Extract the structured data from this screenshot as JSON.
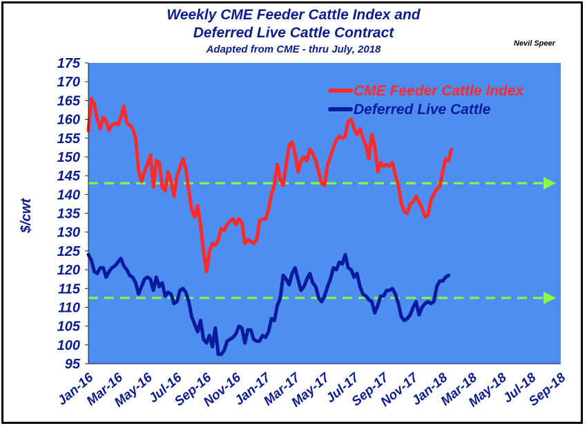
{
  "title_line1": "Weekly CME Feeder Cattle Index and",
  "title_line2": "Deferred Live Cattle Contract",
  "subtitle": "Adapted from CME - thru July, 2018",
  "credit": "Nevil Speer",
  "colors": {
    "plot_bg": "#4e8ef0",
    "feeder": "#ff2a2a",
    "live": "#0a1a9e",
    "reference": "#8aff3a",
    "axis_text": "#0b1c8c"
  },
  "chart_data": {
    "type": "line",
    "title": "Weekly CME Feeder Cattle Index and Deferred Live Cattle Contract",
    "subtitle": "Adapted from CME - thru July, 2018",
    "xlabel": "",
    "ylabel": "$/cwt",
    "ylim": [
      95,
      175
    ],
    "yticks": [
      95,
      100,
      105,
      110,
      115,
      120,
      125,
      130,
      135,
      140,
      145,
      150,
      155,
      160,
      165,
      170,
      175
    ],
    "x_tick_labels": [
      "Jan-16",
      "Mar-16",
      "May-16",
      "Jul-16",
      "Sep-16",
      "Nov-16",
      "Jan-17",
      "Mar-17",
      "May-17",
      "Jul-17",
      "Sep-17",
      "Nov-17",
      "Jan-18",
      "Mar-18",
      "May-18",
      "Jul-18",
      "Sep-18"
    ],
    "x_unit": "months since Jan-16",
    "grid": false,
    "legend_position": "top-right",
    "series": [
      {
        "name": "CME Feeder Cattle Index",
        "color": "#ff2a2a",
        "points": [
          [
            0,
            157
          ],
          [
            0.2,
            165.5
          ],
          [
            0.4,
            164
          ],
          [
            0.6,
            160
          ],
          [
            0.8,
            157.5
          ],
          [
            1.0,
            160.5
          ],
          [
            1.2,
            159.5
          ],
          [
            1.4,
            157
          ],
          [
            1.6,
            158.5
          ],
          [
            1.8,
            159
          ],
          [
            2.0,
            158.5
          ],
          [
            2.2,
            160.5
          ],
          [
            2.4,
            163.5
          ],
          [
            2.6,
            159
          ],
          [
            2.8,
            158.5
          ],
          [
            3.0,
            157.5
          ],
          [
            3.2,
            155
          ],
          [
            3.4,
            146.5
          ],
          [
            3.6,
            143.5
          ],
          [
            3.8,
            146
          ],
          [
            4.0,
            148
          ],
          [
            4.2,
            150.5
          ],
          [
            4.4,
            142
          ],
          [
            4.6,
            149
          ],
          [
            4.8,
            148.5
          ],
          [
            5.0,
            142
          ],
          [
            5.2,
            141
          ],
          [
            5.4,
            146
          ],
          [
            5.6,
            143.5
          ],
          [
            5.8,
            139.5
          ],
          [
            6.0,
            145
          ],
          [
            6.2,
            147
          ],
          [
            6.4,
            149.5
          ],
          [
            6.6,
            147
          ],
          [
            6.8,
            141
          ],
          [
            7.0,
            136
          ],
          [
            7.2,
            134
          ],
          [
            7.4,
            137
          ],
          [
            7.6,
            132
          ],
          [
            7.8,
            125
          ],
          [
            8.0,
            119.5
          ],
          [
            8.2,
            125
          ],
          [
            8.4,
            127
          ],
          [
            8.6,
            126.5
          ],
          [
            8.8,
            128
          ],
          [
            9.0,
            131
          ],
          [
            9.2,
            130.5
          ],
          [
            9.4,
            132
          ],
          [
            9.6,
            133
          ],
          [
            9.8,
            133.5
          ],
          [
            10.0,
            132
          ],
          [
            10.2,
            133.5
          ],
          [
            10.4,
            132.5
          ],
          [
            10.6,
            127
          ],
          [
            10.8,
            128
          ],
          [
            11.0,
            127.5
          ],
          [
            11.2,
            127
          ],
          [
            11.4,
            128
          ],
          [
            11.6,
            133
          ],
          [
            11.8,
            133.5
          ],
          [
            12.0,
            133.5
          ],
          [
            12.2,
            136
          ],
          [
            12.4,
            140
          ],
          [
            12.6,
            142.5
          ],
          [
            12.8,
            148
          ],
          [
            13.0,
            144
          ],
          [
            13.2,
            142.5
          ],
          [
            13.4,
            148
          ],
          [
            13.6,
            153
          ],
          [
            13.8,
            154
          ],
          [
            14.0,
            151
          ],
          [
            14.2,
            146
          ],
          [
            14.4,
            149
          ],
          [
            14.6,
            150
          ],
          [
            14.8,
            149
          ],
          [
            15.0,
            152
          ],
          [
            15.2,
            151
          ],
          [
            15.4,
            149
          ],
          [
            15.6,
            146
          ],
          [
            15.8,
            143
          ],
          [
            16.0,
            142.5
          ],
          [
            16.2,
            148
          ],
          [
            16.4,
            150
          ],
          [
            16.6,
            152.5
          ],
          [
            16.8,
            154.5
          ],
          [
            17.0,
            155.5
          ],
          [
            17.2,
            155
          ],
          [
            17.4,
            155.5
          ],
          [
            17.6,
            159.5
          ],
          [
            17.8,
            160
          ],
          [
            18.0,
            157.5
          ],
          [
            18.2,
            156
          ],
          [
            18.4,
            157.5
          ],
          [
            18.6,
            155
          ],
          [
            18.8,
            153
          ],
          [
            19.0,
            149.5
          ],
          [
            19.2,
            156
          ],
          [
            19.4,
            153
          ],
          [
            19.6,
            146
          ],
          [
            19.8,
            148.5
          ],
          [
            20.0,
            147.5
          ],
          [
            20.2,
            148
          ],
          [
            20.4,
            147.5
          ],
          [
            20.6,
            148.5
          ],
          [
            20.8,
            145
          ],
          [
            21.0,
            142.5
          ],
          [
            21.2,
            137.5
          ],
          [
            21.4,
            135.5
          ],
          [
            21.6,
            135
          ],
          [
            21.8,
            137.5
          ],
          [
            22.0,
            138
          ],
          [
            22.2,
            139.5
          ],
          [
            22.4,
            138
          ],
          [
            22.6,
            136.5
          ],
          [
            22.8,
            134
          ],
          [
            23.0,
            134.5
          ],
          [
            23.2,
            138.5
          ],
          [
            23.4,
            140
          ],
          [
            23.6,
            141.5
          ],
          [
            23.8,
            142
          ],
          [
            24.0,
            146
          ],
          [
            24.2,
            149.5
          ],
          [
            24.4,
            149
          ],
          [
            24.6,
            152
          ]
        ]
      },
      {
        "name": "Deferred Live Cattle",
        "color": "#0a1a9e",
        "points": [
          [
            0,
            124
          ],
          [
            0.2,
            122.5
          ],
          [
            0.4,
            119.5
          ],
          [
            0.6,
            119
          ],
          [
            0.8,
            120.5
          ],
          [
            1.0,
            120.5
          ],
          [
            1.2,
            118
          ],
          [
            1.4,
            119.5
          ],
          [
            1.6,
            120.5
          ],
          [
            1.8,
            121
          ],
          [
            2.0,
            122
          ],
          [
            2.2,
            123
          ],
          [
            2.4,
            121
          ],
          [
            2.6,
            120
          ],
          [
            2.8,
            118.5
          ],
          [
            3.0,
            118
          ],
          [
            3.2,
            116.5
          ],
          [
            3.4,
            113.5
          ],
          [
            3.6,
            115.5
          ],
          [
            3.8,
            117.5
          ],
          [
            4.0,
            118
          ],
          [
            4.2,
            117.5
          ],
          [
            4.4,
            114.5
          ],
          [
            4.6,
            118
          ],
          [
            4.8,
            115.5
          ],
          [
            5.0,
            116.5
          ],
          [
            5.2,
            113
          ],
          [
            5.4,
            114
          ],
          [
            5.6,
            113.5
          ],
          [
            5.8,
            111
          ],
          [
            6.0,
            111.5
          ],
          [
            6.2,
            114.5
          ],
          [
            6.4,
            115
          ],
          [
            6.6,
            114
          ],
          [
            6.8,
            111.5
          ],
          [
            7.0,
            107.5
          ],
          [
            7.2,
            105.5
          ],
          [
            7.4,
            103.5
          ],
          [
            7.6,
            106.5
          ],
          [
            7.8,
            101.5
          ],
          [
            8.0,
            100.5
          ],
          [
            8.2,
            102.5
          ],
          [
            8.4,
            99.5
          ],
          [
            8.6,
            104.5
          ],
          [
            8.8,
            97.5
          ],
          [
            9.0,
            97.5
          ],
          [
            9.2,
            98.5
          ],
          [
            9.4,
            101
          ],
          [
            9.6,
            101.5
          ],
          [
            9.8,
            102
          ],
          [
            10.0,
            103
          ],
          [
            10.2,
            105
          ],
          [
            10.4,
            104.5
          ],
          [
            10.6,
            100.5
          ],
          [
            10.8,
            104
          ],
          [
            11.0,
            104
          ],
          [
            11.2,
            101.5
          ],
          [
            11.4,
            101
          ],
          [
            11.6,
            101
          ],
          [
            11.8,
            102.5
          ],
          [
            12.0,
            102
          ],
          [
            12.2,
            103.5
          ],
          [
            12.4,
            107
          ],
          [
            12.6,
            106.5
          ],
          [
            12.8,
            110.5
          ],
          [
            13.0,
            112.5
          ],
          [
            13.2,
            118.5
          ],
          [
            13.4,
            117.5
          ],
          [
            13.6,
            116
          ],
          [
            13.8,
            119
          ],
          [
            14.0,
            120.5
          ],
          [
            14.2,
            117.5
          ],
          [
            14.4,
            114.5
          ],
          [
            14.6,
            115.5
          ],
          [
            14.8,
            117.5
          ],
          [
            15.0,
            119
          ],
          [
            15.2,
            116.5
          ],
          [
            15.4,
            115.5
          ],
          [
            15.6,
            112.5
          ],
          [
            15.8,
            111.5
          ],
          [
            16.0,
            113
          ],
          [
            16.2,
            115.5
          ],
          [
            16.4,
            117.5
          ],
          [
            16.6,
            120.5
          ],
          [
            16.8,
            120
          ],
          [
            17.0,
            122
          ],
          [
            17.2,
            121.5
          ],
          [
            17.4,
            124
          ],
          [
            17.6,
            120.5
          ],
          [
            17.8,
            120
          ],
          [
            18.0,
            118
          ],
          [
            18.2,
            119
          ],
          [
            18.4,
            115.5
          ],
          [
            18.6,
            113.5
          ],
          [
            18.8,
            113
          ],
          [
            19.0,
            112
          ],
          [
            19.2,
            111.5
          ],
          [
            19.4,
            108.5
          ],
          [
            19.6,
            110.5
          ],
          [
            19.8,
            113
          ],
          [
            20.0,
            113
          ],
          [
            20.2,
            114.5
          ],
          [
            20.4,
            114.5
          ],
          [
            20.6,
            115
          ],
          [
            20.8,
            113.5
          ],
          [
            21.0,
            111
          ],
          [
            21.2,
            107.5
          ],
          [
            21.4,
            106.5
          ],
          [
            21.6,
            107
          ],
          [
            21.8,
            108
          ],
          [
            22.0,
            110
          ],
          [
            22.2,
            111.5
          ],
          [
            22.4,
            108
          ],
          [
            22.6,
            110
          ],
          [
            22.8,
            111
          ],
          [
            23.0,
            111.5
          ],
          [
            23.2,
            111
          ],
          [
            23.4,
            111.5
          ],
          [
            23.6,
            115.5
          ],
          [
            23.8,
            117
          ],
          [
            24.0,
            117
          ],
          [
            24.2,
            118
          ],
          [
            24.4,
            118.5
          ]
        ]
      }
    ],
    "reference_lines": [
      {
        "y": 143,
        "style": "dashed-arrow"
      },
      {
        "y": 112.5,
        "style": "dashed-arrow"
      }
    ]
  }
}
